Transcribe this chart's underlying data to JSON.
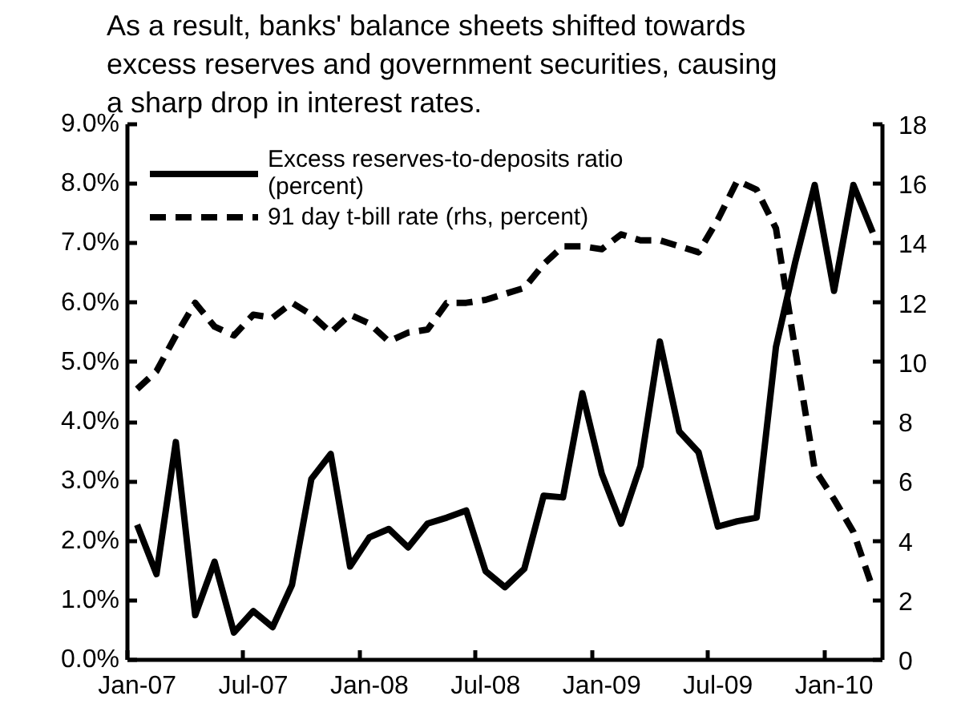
{
  "chart_data": {
    "type": "line",
    "title": "As a result, banks' balance sheets shifted towards excess reserves and government securities, causing a sharp drop in interest rates.",
    "categories": [
      "Jan-07",
      null,
      null,
      null,
      null,
      null,
      "Jul-07",
      null,
      null,
      null,
      null,
      null,
      "Jan-08",
      null,
      null,
      null,
      null,
      null,
      "Jul-08",
      null,
      null,
      null,
      null,
      null,
      "Jan-09",
      null,
      null,
      null,
      null,
      null,
      "Jul-09",
      null,
      null,
      null,
      null,
      null,
      "Jan-10",
      null,
      null
    ],
    "series": [
      {
        "name": "Excess reserves-to-deposits ratio (percent)",
        "color": "#000000",
        "line_style": "solid",
        "values": [
          2.27,
          1.44,
          3.66,
          0.75,
          1.65,
          0.46,
          0.82,
          0.55,
          1.26,
          3.04,
          3.46,
          1.57,
          2.06,
          2.2,
          1.89,
          2.29,
          2.39,
          2.51,
          1.49,
          1.22,
          1.53,
          2.76,
          2.73,
          4.48,
          3.13,
          2.29,
          3.26,
          5.35,
          3.84,
          3.49,
          2.24,
          2.33,
          2.39,
          5.26,
          6.69,
          7.98,
          6.2,
          7.98,
          7.18
        ]
      },
      {
        "name": "91 day t-bill rate (rhs, percent)",
        "color": "#000000",
        "line_style": "dashed",
        "axis": "y2",
        "values": [
          9.1,
          9.7,
          10.9,
          12.0,
          11.2,
          10.9,
          11.6,
          11.5,
          12.0,
          11.6,
          11.0,
          11.6,
          11.3,
          10.7,
          11.0,
          11.1,
          12.0,
          12.0,
          12.1,
          12.3,
          12.5,
          13.3,
          13.9,
          13.9,
          13.8,
          14.3,
          14.1,
          14.1,
          13.9,
          13.7,
          14.8,
          16.1,
          15.8,
          14.5,
          10.4,
          6.4,
          5.4,
          4.3,
          2.4
        ]
      }
    ],
    "ylim": [
      0,
      9
    ],
    "yticks": [
      {
        "value": 0,
        "label": "0.0%"
      },
      {
        "value": 1,
        "label": "1.0%"
      },
      {
        "value": 2,
        "label": "2.0%"
      },
      {
        "value": 3,
        "label": "3.0%"
      },
      {
        "value": 4,
        "label": "4.0%"
      },
      {
        "value": 5,
        "label": "5.0%"
      },
      {
        "value": 6,
        "label": "6.0%"
      },
      {
        "value": 7,
        "label": "7.0%"
      },
      {
        "value": 8,
        "label": "8.0%"
      },
      {
        "value": 9,
        "label": "9.0%"
      }
    ],
    "y2lim": [
      0,
      18
    ],
    "y2ticks": [
      0,
      2,
      4,
      6,
      8,
      10,
      12,
      14,
      16,
      18
    ],
    "legend": "top left",
    "grid": false
  }
}
